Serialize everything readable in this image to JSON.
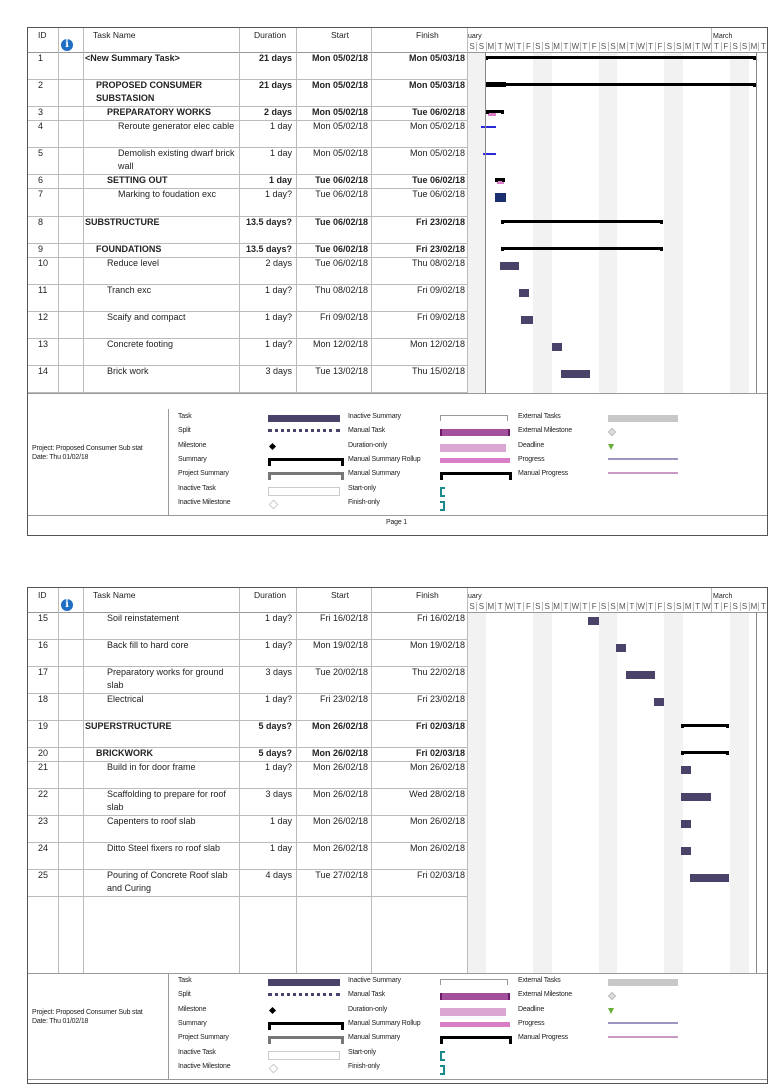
{
  "columns": {
    "id": "ID",
    "info_icon": "info-icon",
    "name": "Task Name",
    "duration": "Duration",
    "start": "Start",
    "finish": "Finish"
  },
  "timescale": {
    "month_left": "uary",
    "month_right": "March",
    "days": [
      "S",
      "S",
      "M",
      "T",
      "W",
      "T",
      "F",
      "S",
      "S",
      "M",
      "T",
      "W",
      "T",
      "F",
      "S",
      "S",
      "M",
      "T",
      "W",
      "T",
      "F",
      "S",
      "S",
      "M",
      "T",
      "W",
      "T",
      "F",
      "S",
      "S",
      "M",
      "T"
    ]
  },
  "pages": [
    {
      "footer": "Page 1",
      "tasks": [
        {
          "id": "1",
          "name": "<New Summary Task>",
          "duration": "21 days",
          "start": "Mon 05/02/18",
          "finish": "Mon 05/03/18",
          "level": 0,
          "bold": true
        },
        {
          "id": "2",
          "name": "PROPOSED CONSUMER SUBSTASION",
          "name2": "",
          "duration": "21 days",
          "start": "Mon 05/02/18",
          "finish": "Mon 05/03/18",
          "level": 1,
          "bold": true
        },
        {
          "id": "3",
          "name": "PREPARATORY WORKS",
          "duration": "2 days",
          "start": "Mon 05/02/18",
          "finish": "Tue 06/02/18",
          "level": 2,
          "bold": true
        },
        {
          "id": "4",
          "name": "Reroute generator elec cable",
          "duration": "1 day",
          "start": "Mon 05/02/18",
          "finish": "Mon 05/02/18",
          "level": 3,
          "bold": false
        },
        {
          "id": "5",
          "name": "Demolish existing dwarf brick wall",
          "duration": "1 day",
          "start": "Mon 05/02/18",
          "finish": "Mon 05/02/18",
          "level": 3,
          "bold": false
        },
        {
          "id": "6",
          "name": "SETTING OUT",
          "duration": "1 day",
          "start": "Tue 06/02/18",
          "finish": "Tue 06/02/18",
          "level": 2,
          "bold": true
        },
        {
          "id": "7",
          "name": "Marking to foudation exc",
          "duration": "1 day?",
          "start": "Tue 06/02/18",
          "finish": "Tue 06/02/18",
          "level": 3,
          "bold": false
        },
        {
          "id": "8",
          "name": "SUBSTRUCTURE",
          "duration": "13.5 days?",
          "start": "Tue 06/02/18",
          "finish": "Fri 23/02/18",
          "level": 0,
          "bold": true
        },
        {
          "id": "9",
          "name": "FOUNDATIONS",
          "duration": "13.5 days?",
          "start": "Tue 06/02/18",
          "finish": "Fri 23/02/18",
          "level": 1,
          "bold": true
        },
        {
          "id": "10",
          "name": "Reduce level",
          "duration": "2 days",
          "start": "Tue 06/02/18",
          "finish": "Thu 08/02/18",
          "level": 2,
          "bold": false
        },
        {
          "id": "11",
          "name": "Tranch exc",
          "duration": "1 day?",
          "start": "Thu 08/02/18",
          "finish": "Fri 09/02/18",
          "level": 2,
          "bold": false
        },
        {
          "id": "12",
          "name": "Scaify and compact",
          "duration": "1 day?",
          "start": "Fri 09/02/18",
          "finish": "Fri 09/02/18",
          "level": 2,
          "bold": false
        },
        {
          "id": "13",
          "name": "Concrete footing",
          "duration": "1 day?",
          "start": "Mon 12/02/18",
          "finish": "Mon 12/02/18",
          "level": 2,
          "bold": false
        },
        {
          "id": "14",
          "name": "Brick work",
          "duration": "3 days",
          "start": "Tue 13/02/18",
          "finish": "Thu 15/02/18",
          "level": 2,
          "bold": false
        }
      ]
    },
    {
      "footer": "",
      "tasks": [
        {
          "id": "15",
          "name": "Soil reinstatement",
          "duration": "1 day?",
          "start": "Fri 16/02/18",
          "finish": "Fri 16/02/18",
          "level": 2,
          "bold": false
        },
        {
          "id": "16",
          "name": "Back fill to hard core",
          "duration": "1 day?",
          "start": "Mon 19/02/18",
          "finish": "Mon 19/02/18",
          "level": 2,
          "bold": false
        },
        {
          "id": "17",
          "name": "Preparatory works for ground slab",
          "duration": "3 days",
          "start": "Tue 20/02/18",
          "finish": "Thu 22/02/18",
          "level": 2,
          "bold": false
        },
        {
          "id": "18",
          "name": "Electrical",
          "duration": "1 day?",
          "start": "Fri 23/02/18",
          "finish": "Fri 23/02/18",
          "level": 2,
          "bold": false
        },
        {
          "id": "19",
          "name": "SUPERSTRUCTURE",
          "duration": "5 days?",
          "start": "Mon 26/02/18",
          "finish": "Fri 02/03/18",
          "level": 0,
          "bold": true
        },
        {
          "id": "20",
          "name": "BRICKWORK",
          "duration": "5 days?",
          "start": "Mon 26/02/18",
          "finish": "Fri 02/03/18",
          "level": 1,
          "bold": true
        },
        {
          "id": "21",
          "name": "Build in for door frame",
          "duration": "1 day?",
          "start": "Mon 26/02/18",
          "finish": "Mon 26/02/18",
          "level": 2,
          "bold": false
        },
        {
          "id": "22",
          "name": "Scaffolding to prepare for roof slab",
          "duration": "3 days",
          "start": "Mon 26/02/18",
          "finish": "Wed 28/02/18",
          "level": 2,
          "bold": false
        },
        {
          "id": "23",
          "name": "Capenters to roof slab",
          "duration": "1 day",
          "start": "Mon 26/02/18",
          "finish": "Mon 26/02/18",
          "level": 2,
          "bold": false
        },
        {
          "id": "24",
          "name": "Ditto Steel fixers ro roof slab",
          "duration": "1 day",
          "start": "Mon 26/02/18",
          "finish": "Mon 26/02/18",
          "level": 2,
          "bold": false
        },
        {
          "id": "25",
          "name": "Pouring of Concrete Roof slab and Curing",
          "duration": "4 days",
          "start": "Tue 27/02/18",
          "finish": "Fri 02/03/18",
          "level": 2,
          "bold": false
        }
      ]
    }
  ],
  "project_info": {
    "project": "Project: Proposed Consumer Sub stat",
    "date": "Date: Thu 01/02/18"
  },
  "legend": [
    {
      "label": "Task",
      "symbol": "task"
    },
    {
      "label": "Split",
      "symbol": "split"
    },
    {
      "label": "Milestone",
      "symbol": "milestone"
    },
    {
      "label": "Summary",
      "symbol": "summary"
    },
    {
      "label": "Project Summary",
      "symbol": "project-summary"
    },
    {
      "label": "Inactive Task",
      "symbol": "inactive-task"
    },
    {
      "label": "Inactive Milestone",
      "symbol": "inactive-milestone"
    },
    {
      "label": "Inactive Summary",
      "symbol": "inactive-summary"
    },
    {
      "label": "Manual Task",
      "symbol": "manual-task"
    },
    {
      "label": "Duration-only",
      "symbol": "duration-only"
    },
    {
      "label": "Manual Summary Rollup",
      "symbol": "manual-summary-rollup"
    },
    {
      "label": "Manual Summary",
      "symbol": "manual-summary"
    },
    {
      "label": "Start-only",
      "symbol": "start-only"
    },
    {
      "label": "Finish-only",
      "symbol": "finish-only"
    },
    {
      "label": "External Tasks",
      "symbol": "external-tasks"
    },
    {
      "label": "External Milestone",
      "symbol": "external-milestone"
    },
    {
      "label": "Deadline",
      "symbol": "deadline"
    },
    {
      "label": "Progress",
      "symbol": "progress"
    },
    {
      "label": "Manual Progress",
      "symbol": "manual-progress"
    }
  ],
  "colors": {
    "task": "#4a4269",
    "manual_task": "#a24f9c",
    "duration_only": "#d9a7d2",
    "rollup": "#d97ec6",
    "external": "#c8c8c8",
    "deadline": "#6aae3a",
    "start_finish": "#1a8a8a",
    "progress": "#9d97c0",
    "manual_progress": "#c89ac4",
    "critical_link": "#2a2ad8",
    "weekend": "#f2f2f2"
  }
}
